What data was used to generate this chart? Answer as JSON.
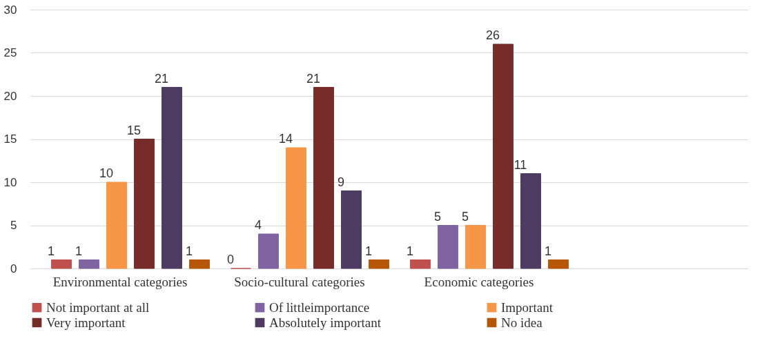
{
  "chart_data": {
    "type": "bar",
    "categories": [
      "Environmental categories",
      "Socio-cultural categories",
      "Economic categories",
      null
    ],
    "series": [
      {
        "name": "Not important at all",
        "color": "#c0504d",
        "values": [
          1,
          0,
          1,
          null
        ]
      },
      {
        "name": "Of littleimportance",
        "color": "#8064a2",
        "values": [
          1,
          4,
          5,
          null
        ]
      },
      {
        "name": "Important",
        "color": "#f79646",
        "values": [
          10,
          14,
          5,
          null
        ]
      },
      {
        "name": "Very important",
        "color": "#772c2a",
        "values": [
          15,
          21,
          26,
          null
        ]
      },
      {
        "name": "Absolutely important",
        "color": "#4d3b62",
        "values": [
          21,
          9,
          11,
          null
        ]
      },
      {
        "name": "No idea",
        "color": "#b65708",
        "values": [
          1,
          1,
          1,
          null
        ]
      }
    ],
    "ylim": [
      0,
      30
    ],
    "yticks": [
      0,
      5,
      10,
      15,
      20,
      25,
      30
    ],
    "grid": "y",
    "legend": "bottom",
    "data_labels": true
  }
}
